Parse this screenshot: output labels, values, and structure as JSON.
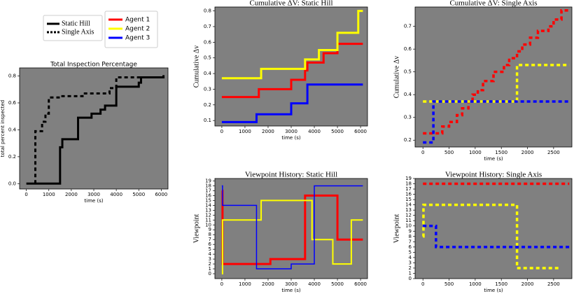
{
  "chart_data": [
    {
      "type": "line",
      "step": "post",
      "title": "Total Inspection Percentage",
      "x_label": "time (s)",
      "y_label": "total percent inspected",
      "xlim": [
        -300,
        6300
      ],
      "xticks": [
        0,
        1000,
        2000,
        3000,
        4000,
        5000,
        6000
      ],
      "ylim": [
        -0.04,
        0.86
      ],
      "yticks": [
        {
          "value": 0,
          "label": "0.0"
        },
        0.2,
        0.4,
        0.6,
        0.8
      ],
      "series": [
        {
          "name": "Static Hill",
          "color": "#000000",
          "linestyle": "solid",
          "width": 3,
          "x": [
            0,
            1500,
            1600,
            2300,
            2900,
            3300,
            3500,
            4000,
            5000,
            5100,
            6100
          ],
          "values": [
            0,
            0.27,
            0.33,
            0.49,
            0.52,
            0.55,
            0.58,
            0.72,
            0.75,
            0.79,
            0.79
          ]
        },
        {
          "name": "Single Axis",
          "color": "#000000",
          "linestyle": "dashed",
          "width": 3,
          "x": [
            400,
            400,
            700,
            850,
            1000,
            1500,
            2500,
            3700,
            4000,
            6100
          ],
          "values": [
            0,
            0.39,
            0.46,
            0.52,
            0.64,
            0.65,
            0.67,
            0.71,
            0.79,
            0.82
          ]
        }
      ]
    },
    {
      "type": "line",
      "step": "post",
      "title": "Cumulative  ΔV: Static Hill",
      "x_label": "time (s)",
      "y_label": "Cumulative  Δv",
      "xlim": [
        -300,
        6300
      ],
      "xticks": [
        0,
        1000,
        2000,
        3000,
        4000,
        5000,
        6000
      ],
      "ylim": [
        0.065,
        0.825
      ],
      "yticks": [
        0.1,
        0.2,
        0.3,
        0.4,
        0.5,
        0.6,
        0.7,
        0.8
      ],
      "series": [
        {
          "name": "Agent 1",
          "color": "#ff0000",
          "linestyle": "solid",
          "width": 3,
          "x": [
            0,
            1600,
            3000,
            3600,
            3700,
            4400,
            5000,
            6100
          ],
          "values": [
            0.25,
            0.3,
            0.36,
            0.42,
            0.47,
            0.53,
            0.59,
            0.59
          ]
        },
        {
          "name": "Agent 2",
          "color": "#ffff00",
          "linestyle": "solid",
          "width": 3,
          "x": [
            0,
            1700,
            3600,
            4200,
            5000,
            5900,
            6100
          ],
          "values": [
            0.37,
            0.43,
            0.49,
            0.55,
            0.66,
            0.8,
            0.8
          ]
        },
        {
          "name": "Agent 3",
          "color": "#0000ff",
          "linestyle": "solid",
          "width": 3,
          "x": [
            0,
            1500,
            3000,
            3700,
            6100
          ],
          "values": [
            0.09,
            0.14,
            0.21,
            0.33,
            0.33
          ]
        }
      ]
    },
    {
      "type": "line",
      "step": "post",
      "title": "Cumulative  ΔV: Single Axis",
      "x_label": "time (s)",
      "y_label": "Cumulative  Δv",
      "xlim": [
        -150,
        2850
      ],
      "xticks": [
        0,
        500,
        1000,
        1500,
        2000,
        2500
      ],
      "ylim": [
        0.17,
        0.785
      ],
      "yticks": [
        0.2,
        0.3,
        0.4,
        0.5,
        0.6,
        0.7
      ],
      "series": [
        {
          "color": "#ff0000",
          "linestyle": "dashed",
          "width": 3.5,
          "x": [
            0,
            200,
            370,
            500,
            650,
            750,
            870,
            950,
            1050,
            1150,
            1350,
            1550,
            1650,
            1800,
            1900,
            2050,
            2200,
            2400,
            2500,
            2650,
            2800
          ],
          "values": [
            0.23,
            0.23,
            0.26,
            0.28,
            0.31,
            0.34,
            0.37,
            0.4,
            0.42,
            0.46,
            0.5,
            0.53,
            0.56,
            0.59,
            0.62,
            0.65,
            0.68,
            0.7,
            0.73,
            0.77,
            0.77
          ]
        },
        {
          "color": "#ffff00",
          "linestyle": "dashed",
          "width": 3.5,
          "x": [
            0,
            1800,
            2800
          ],
          "values": [
            0.37,
            0.53,
            0.53
          ]
        },
        {
          "color": "#0000ff",
          "linestyle": "dashed",
          "width": 3.5,
          "x": [
            0,
            200,
            2800
          ],
          "values": [
            0.19,
            0.37,
            0.37
          ]
        }
      ]
    },
    {
      "type": "line",
      "step": "post",
      "title": "Viewpoint History: Static Hill",
      "x_label": "time (s)",
      "y_label": "Viewpoint",
      "xlim": [
        -300,
        6300
      ],
      "xticks": [
        0,
        1000,
        2000,
        3000,
        4000,
        5000,
        6000
      ],
      "ylim": [
        -1,
        19.5
      ],
      "yticks": [
        0,
        1,
        2,
        3,
        4,
        5,
        6,
        7,
        8,
        9,
        10,
        11,
        12,
        13,
        14,
        15,
        16,
        17,
        18,
        19
      ],
      "series": [
        {
          "color": "#ff0000",
          "linestyle": "solid",
          "width": 3,
          "x": [
            0,
            30,
            2100,
            3600,
            5000,
            6100
          ],
          "values": [
            17,
            2,
            3,
            16,
            7,
            7
          ]
        },
        {
          "color": "#ffff00",
          "linestyle": "solid",
          "width": 2,
          "x": [
            0,
            30,
            1700,
            3900,
            4800,
            5600,
            6100
          ],
          "values": [
            0,
            11,
            15,
            7,
            2,
            11,
            11
          ]
        },
        {
          "color": "#0000ff",
          "linestyle": "solid",
          "width": 1.5,
          "x": [
            0,
            30,
            1500,
            3000,
            4000,
            6100
          ],
          "values": [
            18,
            14,
            1,
            2,
            18,
            18
          ]
        }
      ]
    },
    {
      "type": "line",
      "step": "post",
      "title": "Viewpoint History: Single Axis",
      "x_label": "time (s)",
      "y_label": "Viewpoint",
      "xlim": [
        -150,
        2850
      ],
      "xticks": [
        0,
        500,
        1000,
        1500,
        2000,
        2500
      ],
      "ylim": [
        0,
        19
      ],
      "yticks": [
        0,
        1,
        2,
        3,
        4,
        5,
        6,
        7,
        8,
        9,
        10,
        11,
        12,
        13,
        14,
        15,
        16,
        17,
        18,
        19
      ],
      "series": [
        {
          "color": "#ff0000",
          "linestyle": "dashed",
          "width": 3.5,
          "x": [
            0,
            2800
          ],
          "values": [
            18,
            18
          ]
        },
        {
          "color": "#ffff00",
          "linestyle": "dashed",
          "width": 3.5,
          "x": [
            0,
            10,
            1800,
            2600
          ],
          "values": [
            8,
            14,
            2,
            2
          ]
        },
        {
          "color": "#0000ff",
          "linestyle": "dashed",
          "width": 3.5,
          "x": [
            0,
            250,
            2800
          ],
          "values": [
            10,
            6,
            6
          ]
        }
      ]
    }
  ]
}
